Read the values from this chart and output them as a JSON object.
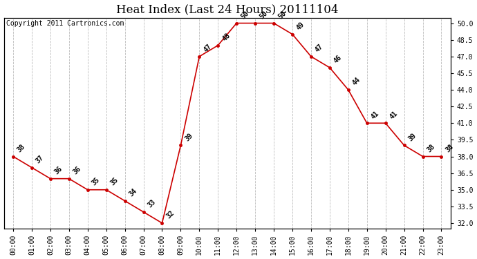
{
  "title": "Heat Index (Last 24 Hours) 20111104",
  "copyright": "Copyright 2011 Cartronics.com",
  "x_labels": [
    "00:00",
    "01:00",
    "02:00",
    "03:00",
    "04:00",
    "05:00",
    "06:00",
    "07:00",
    "08:00",
    "09:00",
    "10:00",
    "11:00",
    "12:00",
    "13:00",
    "14:00",
    "15:00",
    "16:00",
    "17:00",
    "18:00",
    "19:00",
    "20:00",
    "21:00",
    "22:00",
    "23:00"
  ],
  "x_values": [
    0,
    1,
    2,
    3,
    4,
    5,
    6,
    7,
    8,
    9,
    10,
    11,
    12,
    13,
    14,
    15,
    16,
    17,
    18,
    19,
    20,
    21,
    22,
    23
  ],
  "y_values": [
    38,
    37,
    36,
    36,
    35,
    35,
    34,
    33,
    32,
    39,
    47,
    48,
    50,
    50,
    50,
    49,
    47,
    46,
    44,
    41,
    41,
    39,
    38,
    38
  ],
  "y_ticks": [
    32.0,
    33.5,
    35.0,
    36.5,
    38.0,
    39.5,
    41.0,
    42.5,
    44.0,
    45.5,
    47.0,
    48.5,
    50.0
  ],
  "ylim": [
    31.5,
    50.5
  ],
  "line_color": "#cc0000",
  "marker_color": "#cc0000",
  "bg_color": "#ffffff",
  "grid_color": "#bbbbbb",
  "title_fontsize": 12,
  "tick_fontsize": 7,
  "copyright_fontsize": 7,
  "label_fontsize": 7,
  "label_rotation": 45,
  "figwidth": 6.9,
  "figheight": 3.75,
  "dpi": 100
}
